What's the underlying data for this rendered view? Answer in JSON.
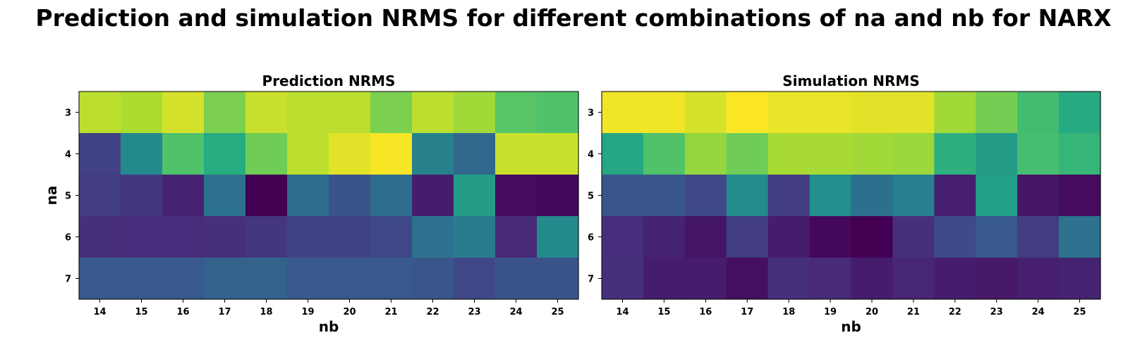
{
  "title": "Prediction and simulation NRMS for different combinations of na and nb for NARX",
  "chart_data": [
    {
      "type": "heatmap",
      "title": "Prediction NRMS",
      "xlabel": "nb",
      "ylabel": "na",
      "x": [
        "14",
        "15",
        "16",
        "17",
        "18",
        "19",
        "20",
        "21",
        "22",
        "23",
        "24",
        "25"
      ],
      "y": [
        "3",
        "4",
        "5",
        "6",
        "7"
      ],
      "colormap": "viridis",
      "values": [
        [
          0.9,
          0.88,
          0.94,
          0.8,
          0.92,
          0.9,
          0.9,
          0.8,
          0.9,
          0.86,
          0.74,
          0.72
        ],
        [
          0.2,
          0.47,
          0.72,
          0.62,
          0.78,
          0.9,
          0.96,
          0.99,
          0.44,
          0.34,
          0.92,
          0.92
        ],
        [
          0.18,
          0.16,
          0.1,
          0.38,
          0.0,
          0.36,
          0.26,
          0.36,
          0.08,
          0.55,
          0.03,
          0.02
        ],
        [
          0.14,
          0.13,
          0.13,
          0.14,
          0.16,
          0.2,
          0.2,
          0.22,
          0.38,
          0.42,
          0.12,
          0.47
        ],
        [
          0.28,
          0.28,
          0.28,
          0.32,
          0.32,
          0.28,
          0.28,
          0.28,
          0.27,
          0.22,
          0.26,
          0.26
        ]
      ]
    },
    {
      "type": "heatmap",
      "title": "Simulation NRMS",
      "xlabel": "nb",
      "ylabel": "",
      "x": [
        "14",
        "15",
        "16",
        "17",
        "18",
        "19",
        "20",
        "21",
        "22",
        "23",
        "24",
        "25"
      ],
      "y": [
        "3",
        "4",
        "5",
        "6",
        "7"
      ],
      "colormap": "viridis",
      "values": [
        [
          0.98,
          0.98,
          0.94,
          1.0,
          0.97,
          0.97,
          0.96,
          0.96,
          0.86,
          0.79,
          0.69,
          0.61
        ],
        [
          0.6,
          0.72,
          0.84,
          0.78,
          0.87,
          0.87,
          0.86,
          0.85,
          0.64,
          0.55,
          0.7,
          0.66
        ],
        [
          0.27,
          0.27,
          0.22,
          0.48,
          0.18,
          0.49,
          0.37,
          0.43,
          0.09,
          0.57,
          0.06,
          0.03
        ],
        [
          0.13,
          0.1,
          0.06,
          0.18,
          0.08,
          0.02,
          0.0,
          0.14,
          0.23,
          0.28,
          0.18,
          0.38
        ],
        [
          0.14,
          0.08,
          0.08,
          0.04,
          0.14,
          0.12,
          0.08,
          0.11,
          0.08,
          0.07,
          0.09,
          0.1
        ]
      ]
    }
  ]
}
